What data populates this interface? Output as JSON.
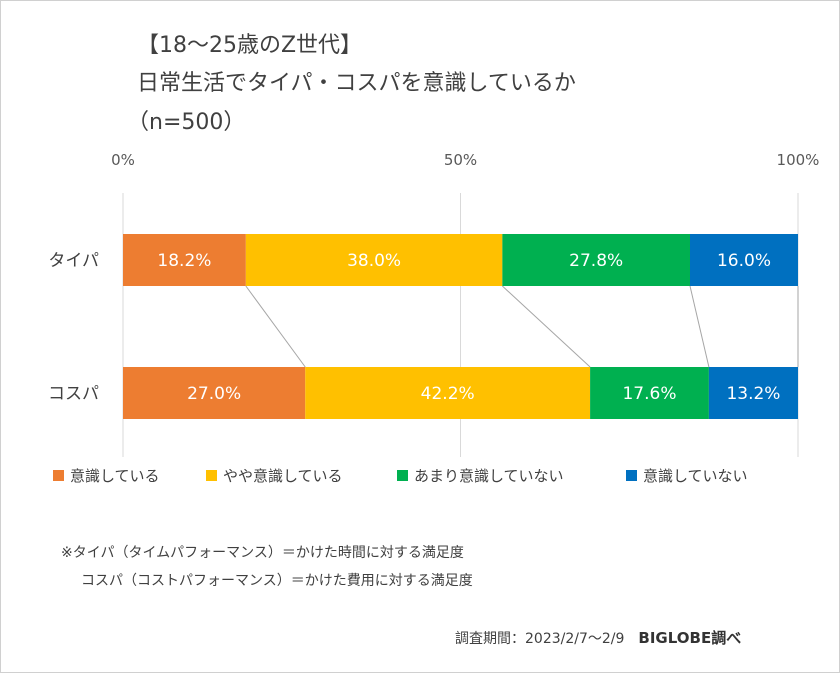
{
  "title": {
    "line1": "【18〜25歳のZ世代】",
    "line2": "日常生活でタイパ・コスパを意識しているか",
    "line3": "（n=500）"
  },
  "chart_data": {
    "type": "bar",
    "orientation": "horizontal",
    "stacked": "100%",
    "categories": [
      "タイパ",
      "コスパ"
    ],
    "series": [
      {
        "name": "意識している",
        "values": [
          18.2,
          27.0
        ],
        "color": "#ED7D31"
      },
      {
        "name": "やや意識している",
        "values": [
          38.0,
          42.2
        ],
        "color": "#FFC000"
      },
      {
        "name": "あまり意識していない",
        "values": [
          27.8,
          17.6
        ],
        "color": "#00B050"
      },
      {
        "name": "意識していない",
        "values": [
          16.0,
          13.2
        ],
        "color": "#0070C0"
      }
    ],
    "data_labels": [
      [
        "18.2%",
        "38.0%",
        "27.8%",
        "16.0%"
      ],
      [
        "27.0%",
        "42.2%",
        "17.6%",
        "13.2%"
      ]
    ],
    "x_ticks": [
      "0%",
      "50%",
      "100%"
    ],
    "x_tick_values": [
      0,
      50,
      100
    ],
    "xlim": [
      0,
      100
    ],
    "axis_position": "top",
    "grid": true,
    "series_lines": true,
    "legend_position": "bottom"
  },
  "notes": {
    "line1": "※タイパ（タイムパフォーマンス）＝かけた時間に対する満足度",
    "line2": "コスパ（コストパフォーマンス）＝かけた費用に対する満足度"
  },
  "footer": {
    "period": "調査期間：2023/2/7〜2/9",
    "brand": "BIGLOBE調べ"
  }
}
